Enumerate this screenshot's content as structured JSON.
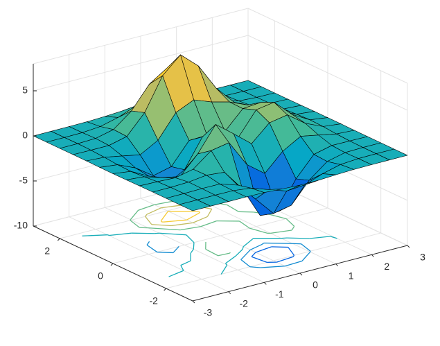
{
  "chart_data": {
    "type": "surface",
    "x": [
      -3,
      -2.5,
      -2,
      -1.5,
      -1,
      -0.5,
      0,
      0.5,
      1,
      1.5,
      2,
      2.5,
      3
    ],
    "y": [
      -3,
      -2.5,
      -2,
      -1.5,
      -1,
      -0.5,
      0,
      0.5,
      1,
      1.5,
      2,
      2.5,
      3
    ],
    "z": [
      [
        0,
        0,
        0,
        0,
        -0.03,
        -0.14,
        -0.24,
        -0.22,
        -0.11,
        -0.03,
        -0.01,
        0,
        0
      ],
      [
        0,
        0,
        0.02,
        0,
        -0.23,
        -0.91,
        -1.57,
        -1.41,
        -0.69,
        -0.18,
        -0.03,
        0,
        0
      ],
      [
        0,
        0.01,
        0.05,
        0.05,
        -0.59,
        -2.64,
        -4.76,
        -4.35,
        -2.1,
        -0.53,
        -0.06,
        0,
        0
      ],
      [
        0,
        0.01,
        0.08,
        0.33,
        0.15,
        -2.19,
        -5.68,
        -5.76,
        -2.64,
        -0.44,
        0.04,
        0.03,
        0
      ],
      [
        -0.01,
        -0.06,
        -0.13,
        0.3,
        1.86,
        2.22,
        -0.72,
        -2.22,
        -0.27,
        0.88,
        0.5,
        0.11,
        0.01
      ],
      [
        -0.03,
        -0.2,
        -0.8,
        -1.21,
        0.8,
        3.55,
        2,
        0.39,
        2.2,
        2.56,
        1.12,
        0.24,
        0.03
      ],
      [
        -0.04,
        -0.3,
        -1.33,
        -2.77,
        -1.65,
        1.48,
        0.98,
        0.37,
        2.94,
        3.27,
        1.41,
        0.3,
        0.03
      ],
      [
        -0.03,
        -0.25,
        -1.12,
        -2.49,
        -2,
        0.39,
        0.46,
        0.38,
        2.38,
        2.56,
        1.09,
        0.23,
        0.03
      ],
      [
        -0.01,
        -0.11,
        -0.48,
        -0.87,
        0.23,
        2.79,
        3.69,
        2.94,
        2.43,
        1.58,
        0.58,
        0.11,
        0.01
      ],
      [
        0,
        -0.02,
        -0.01,
        0.48,
        2.61,
        6.2,
        8,
        6.25,
        3.25,
        1.19,
        0.29,
        0.05,
        0
      ],
      [
        0,
        0.01,
        0.08,
        0.55,
        2.1,
        4.56,
        5.86,
        4.57,
        2.21,
        0.68,
        0.13,
        0.02,
        0
      ],
      [
        0,
        0,
        0.03,
        0.19,
        0.69,
        1.47,
        1.89,
        1.47,
        0.7,
        0.21,
        0.04,
        0,
        0
      ],
      [
        0,
        0,
        0.01,
        0.03,
        0.11,
        0.23,
        0.3,
        0.23,
        0.11,
        0.03,
        0.01,
        0,
        0
      ]
    ],
    "xlim": [
      -3,
      3
    ],
    "ylim": [
      -3,
      3
    ],
    "zlim": [
      -10,
      8
    ],
    "xticks": [
      -3,
      -2,
      -1,
      0,
      1,
      2,
      3
    ],
    "yticks": [
      -2,
      0,
      2
    ],
    "zticks": [
      -10,
      -5,
      0,
      5
    ],
    "grid": true,
    "edge_color": "#000000",
    "colormap": [
      "#352a87",
      "#0363e1",
      "#1485d4",
      "#06a7c6",
      "#38b99e",
      "#92bf73",
      "#d9ba56",
      "#fcce2e",
      "#f9fb0e"
    ],
    "contour_levels": [
      -6,
      -4,
      -2,
      0,
      2,
      4,
      6
    ]
  }
}
